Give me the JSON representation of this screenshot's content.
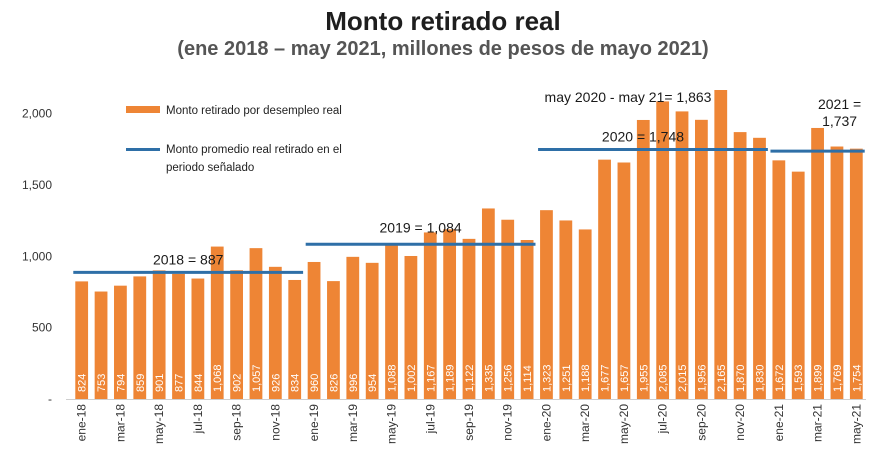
{
  "header": {
    "title": "Monto retirado real",
    "subtitle": "(ene 2018 – may 2021, millones de pesos de mayo 2021)"
  },
  "colors": {
    "bar": "#EE8535",
    "avg_line": "#2E6FA7",
    "bar_label": "#ffffff"
  },
  "chart_data": {
    "type": "bar",
    "categories": [
      "ene-18",
      "feb-18",
      "mar-18",
      "abr-18",
      "may-18",
      "jun-18",
      "jul-18",
      "ago-18",
      "sep-18",
      "oct-18",
      "nov-18",
      "dic-18",
      "ene-19",
      "feb-19",
      "mar-19",
      "abr-19",
      "may-19",
      "jun-19",
      "jul-19",
      "ago-19",
      "sep-19",
      "oct-19",
      "nov-19",
      "dic-19",
      "ene-20",
      "feb-20",
      "mar-20",
      "abr-20",
      "may-20",
      "jun-20",
      "jul-20",
      "ago-20",
      "sep-20",
      "oct-20",
      "nov-20",
      "dic-20",
      "ene-21",
      "feb-21",
      "mar-21",
      "abr-21",
      "may-21"
    ],
    "tick_labels": [
      "ene-18",
      "mar-18",
      "may-18",
      "jul-18",
      "sep-18",
      "nov-18",
      "ene-19",
      "mar-19",
      "may-19",
      "jul-19",
      "sep-19",
      "nov-19",
      "ene-20",
      "mar-20",
      "may-20",
      "jul-20",
      "sep-20",
      "nov-20",
      "ene-21",
      "mar-21",
      "may-21"
    ],
    "value_labels": [
      "824",
      "753",
      "794",
      "859",
      "901",
      "877",
      "844",
      "1,068",
      "902",
      "1,057",
      "926",
      "834",
      "960",
      "826",
      "996",
      "954",
      "1,088",
      "1,002",
      "1,167",
      "1,189",
      "1,122",
      "1,335",
      "1,256",
      "1,114",
      "1,323",
      "1,251",
      "1,188",
      "1,677",
      "1,657",
      "1,955",
      "2,085",
      "2,015",
      "1,956",
      "2,165",
      "1,870",
      "1,830",
      "1,672",
      "1,593",
      "1,899",
      "1,769",
      "1,754"
    ],
    "series": [
      {
        "name": "Monto retirado por desempleo real",
        "values": [
          824,
          753,
          794,
          859,
          901,
          877,
          844,
          1068,
          902,
          1057,
          926,
          834,
          960,
          826,
          996,
          954,
          1088,
          1002,
          1167,
          1189,
          1122,
          1335,
          1256,
          1114,
          1323,
          1251,
          1188,
          1677,
          1657,
          1955,
          2085,
          2015,
          1956,
          2165,
          1870,
          1830,
          1672,
          1593,
          1899,
          1769,
          1754
        ]
      }
    ],
    "averages": [
      {
        "label": "2018 = 887",
        "value": 887,
        "from": "ene-18",
        "to": "dic-18"
      },
      {
        "label": "2019 = 1,084",
        "value": 1084,
        "from": "ene-19",
        "to": "dic-19"
      },
      {
        "label": "2020 = 1,748",
        "value": 1748,
        "from": "ene-20",
        "to": "dic-20"
      },
      {
        "label": "2021 = 1,737",
        "value": 1737,
        "from": "ene-21",
        "to": "may-21"
      }
    ],
    "annotation": "may 2020 - may 21= 1,863",
    "legend": [
      {
        "label": "Monto retirado por desempleo real",
        "kind": "bar"
      },
      {
        "label": "Monto promedio real retirado en el periodo señalado",
        "kind": "line"
      }
    ],
    "legend_position": "top-left",
    "yticks": [
      0,
      500,
      1000,
      1500,
      2000
    ],
    "ytick_labels": [
      "-",
      "500",
      "1,000",
      "1,500",
      "2,000"
    ],
    "ylim": [
      0,
      2200
    ],
    "grid": false,
    "xlabel": "",
    "ylabel": ""
  }
}
